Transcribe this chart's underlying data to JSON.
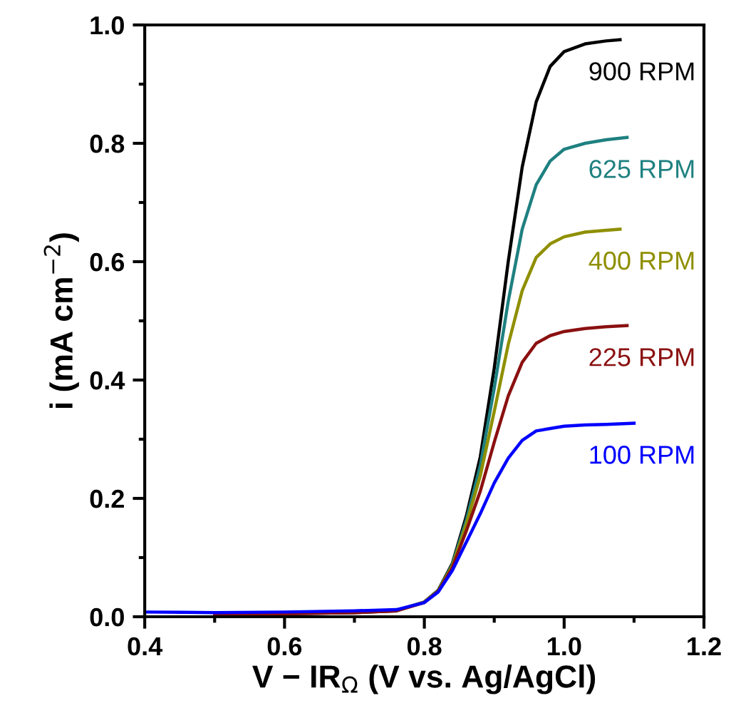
{
  "chart_data": {
    "type": "line",
    "xlabel": "V − IR$_{Ω}$ (V vs. Ag/AgCl)",
    "ylabel": "i (mA cm$^{−2}$)",
    "xlim": [
      0.4,
      1.2
    ],
    "ylim": [
      0.0,
      1.0
    ],
    "xticks": [
      {
        "value": 0.4,
        "label": "0.4"
      },
      {
        "value": 0.6,
        "label": "0.6"
      },
      {
        "value": 0.8,
        "label": "0.8"
      },
      {
        "value": 1.0,
        "label": "1.0"
      },
      {
        "value": 1.2,
        "label": "1.2"
      }
    ],
    "yticks": [
      {
        "value": 0.0,
        "label": "0.0"
      },
      {
        "value": 0.2,
        "label": "0.2"
      },
      {
        "value": 0.4,
        "label": "0.4"
      },
      {
        "value": 0.6,
        "label": "0.6"
      },
      {
        "value": 0.8,
        "label": "0.8"
      },
      {
        "value": 1.0,
        "label": "1.0"
      }
    ],
    "grid": false,
    "legend": false,
    "line_style": "solid",
    "series": [
      {
        "name": "900 RPM",
        "color": "#000000",
        "x": [
          0.5,
          0.6,
          0.7,
          0.76,
          0.8,
          0.82,
          0.84,
          0.86,
          0.88,
          0.9,
          0.92,
          0.94,
          0.96,
          0.98,
          1.0,
          1.03,
          1.06,
          1.08
        ],
        "values": [
          0.003,
          0.005,
          0.007,
          0.01,
          0.025,
          0.045,
          0.09,
          0.17,
          0.27,
          0.42,
          0.6,
          0.76,
          0.87,
          0.93,
          0.955,
          0.968,
          0.973,
          0.975
        ]
      },
      {
        "name": "625 RPM",
        "color": "#1f8080",
        "x": [
          0.76,
          0.8,
          0.82,
          0.84,
          0.86,
          0.88,
          0.9,
          0.92,
          0.94,
          0.96,
          0.98,
          1.0,
          1.03,
          1.06,
          1.09
        ],
        "values": [
          0.01,
          0.025,
          0.044,
          0.088,
          0.163,
          0.255,
          0.386,
          0.533,
          0.655,
          0.73,
          0.77,
          0.79,
          0.8,
          0.806,
          0.81
        ]
      },
      {
        "name": "400 RPM",
        "color": "#8f8f00",
        "x": [
          0.76,
          0.8,
          0.82,
          0.84,
          0.86,
          0.88,
          0.9,
          0.92,
          0.94,
          0.96,
          0.98,
          1.0,
          1.03,
          1.06,
          1.08
        ],
        "values": [
          0.01,
          0.025,
          0.044,
          0.086,
          0.156,
          0.238,
          0.347,
          0.46,
          0.551,
          0.607,
          0.63,
          0.642,
          0.65,
          0.653,
          0.655
        ]
      },
      {
        "name": "225 RPM",
        "color": "#8b1010",
        "x": [
          0.5,
          0.6,
          0.7,
          0.76,
          0.8,
          0.82,
          0.84,
          0.86,
          0.88,
          0.9,
          0.92,
          0.94,
          0.96,
          0.98,
          1.0,
          1.03,
          1.06,
          1.09
        ],
        "values": [
          0.003,
          0.005,
          0.007,
          0.01,
          0.024,
          0.043,
          0.083,
          0.145,
          0.212,
          0.295,
          0.373,
          0.43,
          0.462,
          0.475,
          0.482,
          0.487,
          0.49,
          0.492
        ]
      },
      {
        "name": "100 RPM",
        "color": "#0000ff",
        "x": [
          0.4,
          0.5,
          0.6,
          0.7,
          0.76,
          0.8,
          0.82,
          0.84,
          0.86,
          0.88,
          0.9,
          0.92,
          0.94,
          0.96,
          0.98,
          1.0,
          1.03,
          1.06,
          1.1
        ],
        "values": [
          0.008,
          0.007,
          0.008,
          0.01,
          0.012,
          0.024,
          0.042,
          0.078,
          0.126,
          0.174,
          0.226,
          0.268,
          0.298,
          0.314,
          0.318,
          0.322,
          0.324,
          0.325,
          0.327
        ]
      }
    ]
  }
}
